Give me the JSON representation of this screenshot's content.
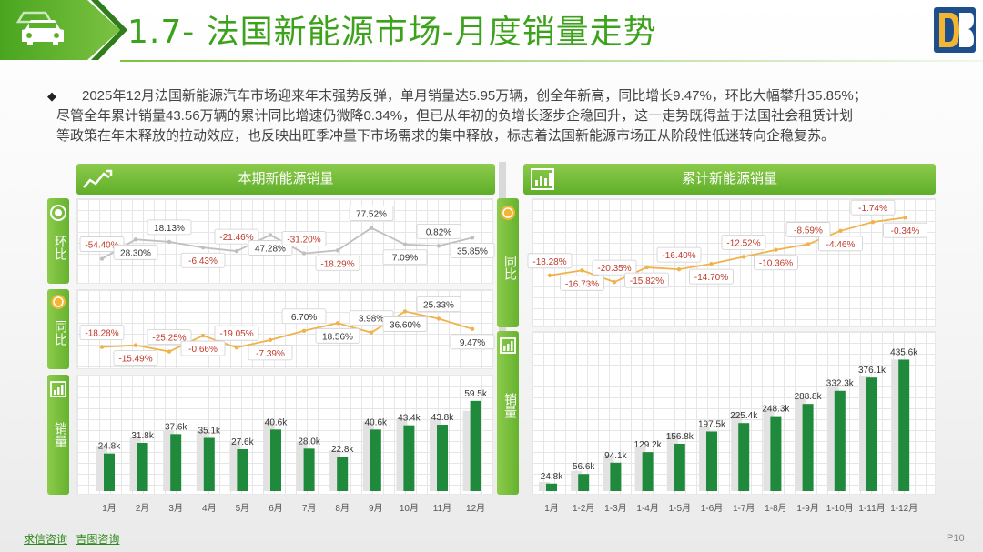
{
  "header": {
    "title": "1.7- 法国新能源市场-月度销量走势",
    "accent": "#3ca21c"
  },
  "summary": {
    "line1": "2025年12月法国新能源汽车市场迎来年末强势反弹，单月销量达5.95万辆，创全年新高，同比增长9.47%，环比大幅攀升35.85%；",
    "line2": "尽管全年累计销量43.56万辆的累计同比增速仍微降0.34%，但已从年初的负增长逐步企稳回升，这一走势既得益于法国社会租赁计划",
    "line3": "等政策在年末释放的拉动效应，也反映出旺季冲量下市场需求的集中释放，标志着法国新能源市场正从阶段性低迷转向企稳复苏。"
  },
  "left_panel": {
    "title": "本期新能源销量",
    "label_mom": "环比",
    "label_yoy": "同比",
    "label_sales": "销量"
  },
  "right_panel": {
    "title": "累计新能源销量",
    "label_yoy": "同比",
    "label_sales": "销量"
  },
  "chart_data": [
    {
      "type": "bar",
      "name": "monthly",
      "categories": [
        "1月",
        "2月",
        "3月",
        "4月",
        "5月",
        "6月",
        "7月",
        "8月",
        "9月",
        "10月",
        "11月",
        "12月"
      ],
      "series": [
        {
          "values": [
            24.8,
            31.8,
            37.6,
            35.1,
            27.6,
            40.6,
            28.0,
            22.8,
            40.6,
            43.4,
            43.8,
            59.5
          ],
          "labels": [
            "24.8k",
            "31.8k",
            "37.6k",
            "35.1k",
            "27.6k",
            "40.6k",
            "28.0k",
            "22.8k",
            "40.6k",
            "43.4k",
            "43.8k",
            "59.5k"
          ],
          "color": "#1f8a3b"
        },
        {
          "values": [
            30,
            36,
            40,
            40,
            33,
            46,
            33,
            27,
            46,
            48,
            48,
            53
          ],
          "color": "#e2e2e2"
        }
      ],
      "mom": {
        "values": [
          -54.4,
          28.3,
          18.13,
          -6.43,
          -21.46,
          47.28,
          -31.2,
          -18.29,
          77.52,
          7.09,
          0.82,
          35.85
        ],
        "labels": [
          "-54.40%",
          "28.30%",
          "18.13%",
          "-6.43%",
          "-21.46%",
          "47.28%",
          "-31.20%",
          "-18.29%",
          "77.52%",
          "7.09%",
          "0.82%",
          "35.85%"
        ]
      },
      "yoy": {
        "values": [
          -18.28,
          -15.49,
          -25.25,
          -0.66,
          -19.05,
          -7.39,
          6.7,
          18.56,
          3.98,
          36.6,
          25.33,
          9.47
        ],
        "labels": [
          "-18.28%",
          "-15.49%",
          "-25.25%",
          "-0.66%",
          "-19.05%",
          "-7.39%",
          "6.70%",
          "18.56%",
          "3.98%",
          "36.60%",
          "25.33%",
          "9.47%"
        ]
      }
    },
    {
      "type": "bar",
      "name": "cumulative",
      "categories": [
        "1月",
        "1-2月",
        "1-3月",
        "1-4月",
        "1-5月",
        "1-6月",
        "1-7月",
        "1-8月",
        "1-9月",
        "1-10月",
        "1-11月",
        "1-12月"
      ],
      "series": [
        {
          "values": [
            24.8,
            56.6,
            94.1,
            129.2,
            156.8,
            197.5,
            225.4,
            248.3,
            288.8,
            332.3,
            376.1,
            435.6
          ],
          "labels": [
            "24.8k",
            "56.6k",
            "94.1k",
            "129.2k",
            "156.8k",
            "197.5k",
            "225.4k",
            "248.3k",
            "288.8k",
            "332.3k",
            "376.1k",
            "435.6k"
          ],
          "color": "#1f8a3b"
        },
        {
          "values": [
            30,
            67,
            118,
            150,
            193,
            214,
            257,
            276,
            305,
            345,
            381,
            436
          ],
          "color": "#e2e2e2"
        }
      ],
      "yoy": {
        "values": [
          -18.28,
          -16.73,
          -20.35,
          -15.82,
          -16.4,
          -14.7,
          -12.52,
          -10.36,
          -8.59,
          -4.46,
          -1.74,
          -0.34
        ],
        "labels": [
          "-18.28%",
          "-16.73%",
          "-20.35%",
          "-15.82%",
          "-16.40%",
          "-14.70%",
          "-12.52%",
          "-10.36%",
          "-8.59%",
          "-4.46%",
          "-1.74%",
          "-0.34%"
        ]
      }
    }
  ],
  "footer": {
    "link1": "求信咨询",
    "link2": "吉图咨询",
    "page": "P10"
  },
  "colors": {
    "green": "#3ca21c",
    "bar_dark": "#1f8a3b",
    "bar_light": "#e2e2e2",
    "line": "#f0b24a",
    "neg_label": "#c0392b",
    "pos_label": "#333333"
  }
}
